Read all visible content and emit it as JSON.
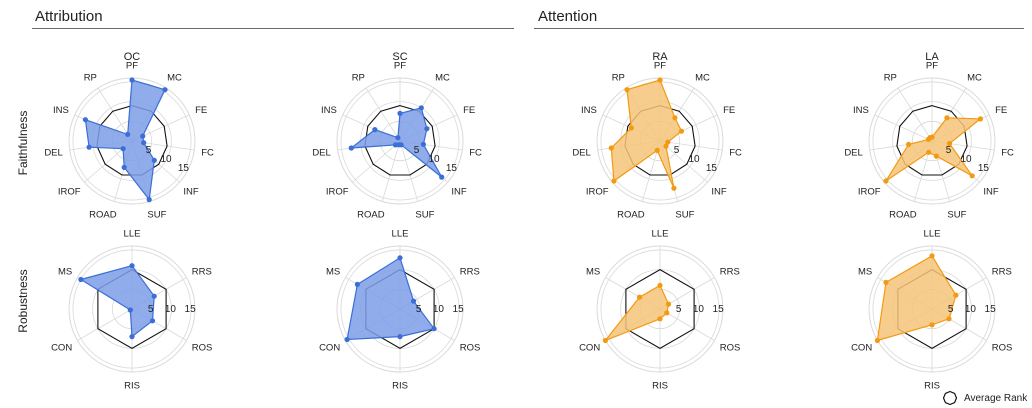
{
  "sections": [
    {
      "title": "Attribution"
    },
    {
      "title": "Attention"
    }
  ],
  "rows": [
    "Faithfulness",
    "Robustness"
  ],
  "legend": {
    "label": "Average Rank"
  },
  "colors": {
    "attribution": "#3b6fd6",
    "attribution_fill": "#7d9ee6",
    "attention": "#f29a12",
    "attention_fill": "#f6c47a",
    "average": "#111111",
    "grid": "#d9d9d9"
  },
  "chart_data": [
    {
      "type": "radar",
      "title": "OC",
      "section": "Attribution",
      "row": "Faithfulness",
      "axes": [
        "PF",
        "MC",
        "FE",
        "FC",
        "INF",
        "SUF",
        "ROAD",
        "IROF",
        "DEL",
        "INS",
        "RP"
      ],
      "r_ticks": [
        5,
        10,
        15
      ],
      "r_max": 16,
      "values": [
        15.5,
        15.5,
        3,
        3,
        7.5,
        15.5,
        7,
        3,
        11,
        13,
        2
      ],
      "average": [
        9,
        9,
        9,
        9,
        9,
        9,
        9,
        9,
        9,
        9,
        9
      ]
    },
    {
      "type": "radar",
      "title": "SC",
      "section": "Attribution",
      "row": "Faithfulness",
      "axes": [
        "PF",
        "MC",
        "FE",
        "FC",
        "INF",
        "SUF",
        "ROAD",
        "IROF",
        "DEL",
        "INS",
        "RP"
      ],
      "r_ticks": [
        5,
        10,
        15
      ],
      "r_max": 16,
      "values": [
        7,
        10,
        7.5,
        6,
        14,
        1,
        1,
        1.5,
        12.5,
        7,
        1
      ],
      "average": [
        9,
        9,
        9,
        9,
        9,
        9,
        9,
        9,
        9,
        9,
        9
      ]
    },
    {
      "type": "radar",
      "title": "RA",
      "section": "Attention",
      "row": "Faithfulness",
      "axes": [
        "PF",
        "MC",
        "FE",
        "FC",
        "INF",
        "SUF",
        "ROAD",
        "IROF",
        "DEL",
        "INS",
        "RP"
      ],
      "r_ticks": [
        5,
        10,
        15
      ],
      "r_max": 16,
      "values": [
        15.5,
        7,
        6,
        2,
        2,
        12.5,
        2.5,
        15.5,
        12.5,
        8,
        15.5
      ],
      "average": [
        9,
        9,
        9,
        9,
        9,
        9,
        9,
        9,
        9,
        9,
        9
      ]
    },
    {
      "type": "radar",
      "title": "LA",
      "section": "Attention",
      "row": "Faithfulness",
      "axes": [
        "PF",
        "MC",
        "FE",
        "FC",
        "INF",
        "SUF",
        "ROAD",
        "IROF",
        "DEL",
        "INS",
        "RP"
      ],
      "r_ticks": [
        5,
        10,
        15
      ],
      "r_max": 16,
      "values": [
        1,
        7,
        13.5,
        4.5,
        13.5,
        4,
        3,
        15.5,
        6,
        1,
        1
      ],
      "average": [
        9,
        9,
        9,
        9,
        9,
        9,
        9,
        9,
        9,
        9,
        9
      ]
    },
    {
      "type": "radar",
      "title": "",
      "section": "Attribution",
      "row": "Robustness",
      "axes": [
        "LLE",
        "RRS",
        "ROS",
        "RIS",
        "CON",
        "MS"
      ],
      "r_ticks": [
        5,
        10,
        15
      ],
      "r_max": 16,
      "values": [
        11,
        6.5,
        6,
        7,
        0.5,
        15
      ],
      "average": [
        10,
        10,
        10,
        10,
        10,
        10
      ]
    },
    {
      "type": "radar",
      "title": "",
      "section": "Attribution",
      "row": "Robustness",
      "axes": [
        "LLE",
        "RRS",
        "ROS",
        "RIS",
        "CON",
        "MS"
      ],
      "r_ticks": [
        5,
        10,
        15
      ],
      "r_max": 16,
      "values": [
        13,
        4,
        10,
        7,
        15.5,
        12.5
      ],
      "average": [
        10,
        10,
        10,
        10,
        10,
        10
      ]
    },
    {
      "type": "radar",
      "title": "",
      "section": "Attention",
      "row": "Robustness",
      "axes": [
        "LLE",
        "RRS",
        "ROS",
        "RIS",
        "CON",
        "MS"
      ],
      "r_ticks": [
        5,
        10,
        15
      ],
      "r_max": 16,
      "values": [
        6,
        2.5,
        2,
        2.5,
        16,
        6
      ],
      "average": [
        10,
        10,
        10,
        10,
        10,
        10
      ]
    },
    {
      "type": "radar",
      "title": "",
      "section": "Attention",
      "row": "Robustness",
      "axes": [
        "LLE",
        "RRS",
        "ROS",
        "RIS",
        "CON",
        "MS"
      ],
      "r_ticks": [
        5,
        10,
        15
      ],
      "r_max": 16,
      "values": [
        13.5,
        7,
        5,
        4,
        16,
        13.5
      ],
      "average": [
        10,
        10,
        10,
        10,
        10,
        10
      ]
    }
  ]
}
